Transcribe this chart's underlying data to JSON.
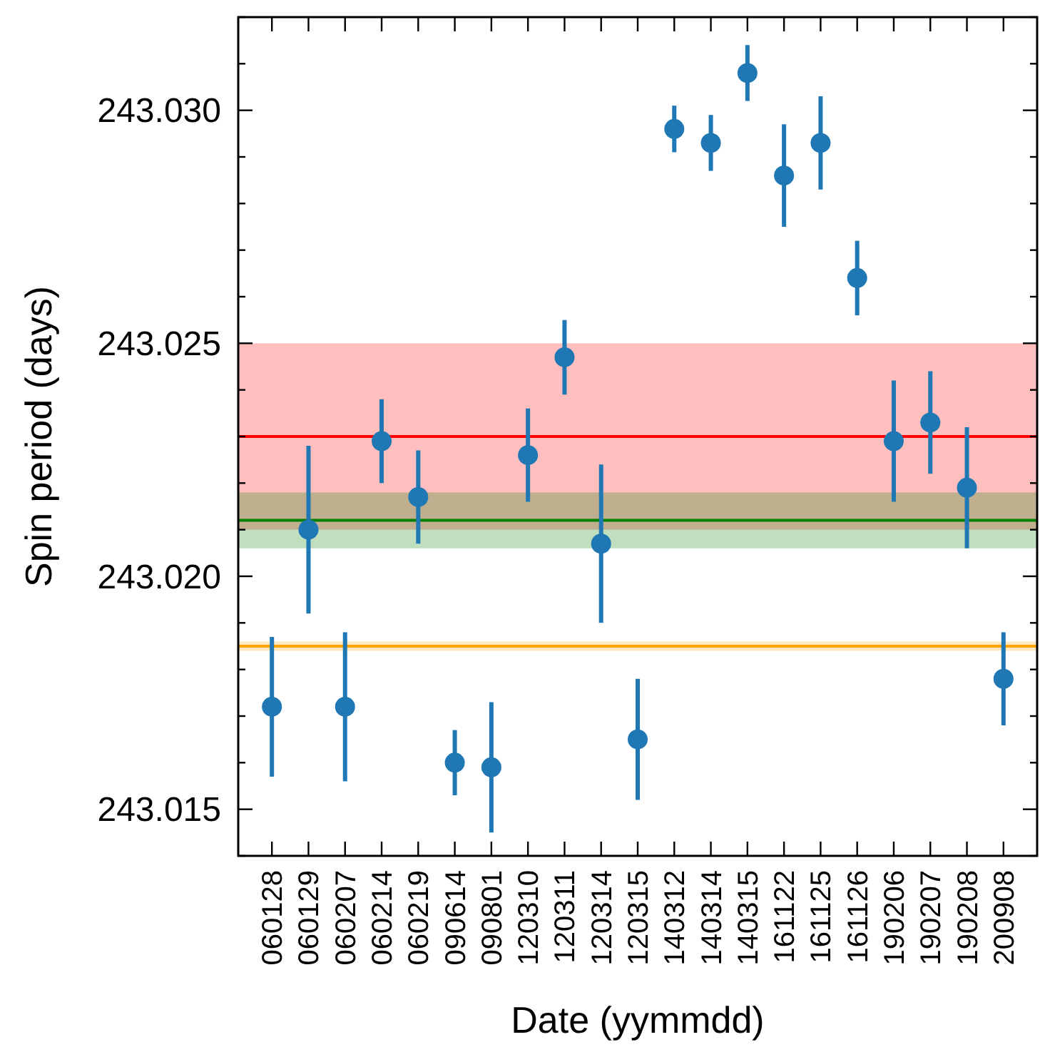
{
  "chart_data": {
    "type": "scatter",
    "xlabel": "Date (yymmdd)",
    "ylabel": "Spin period (days)",
    "categories": [
      "060128",
      "060129",
      "060207",
      "060214",
      "060219",
      "090614",
      "090801",
      "120310",
      "120311",
      "120314",
      "120315",
      "140312",
      "140314",
      "140315",
      "161122",
      "161125",
      "161126",
      "190206",
      "190207",
      "190208",
      "200908"
    ],
    "series": [
      {
        "color": "#1f77b4",
        "values": [
          243.0172,
          243.021,
          243.0172,
          243.0229,
          243.0217,
          243.016,
          243.0159,
          243.0226,
          243.0247,
          243.0207,
          243.0165,
          243.0296,
          243.0293,
          243.0308,
          243.0286,
          243.0293,
          243.0264,
          243.0229,
          243.0233,
          243.0219,
          243.0178
        ],
        "errors": [
          0.0015,
          0.0018,
          0.0016,
          0.0009,
          0.001,
          0.0007,
          0.0014,
          0.001,
          0.0008,
          0.0017,
          0.0013,
          0.0005,
          0.0006,
          0.0006,
          0.0011,
          0.001,
          0.0008,
          0.0013,
          0.0011,
          0.0013,
          0.001
        ]
      }
    ],
    "marker": "circle",
    "grid": false,
    "ylim": [
      243.014,
      243.032
    ],
    "yticks": [
      {
        "value": 243.014,
        "label": null
      },
      {
        "value": 243.015,
        "label": "243.015"
      },
      {
        "value": 243.016,
        "label": null
      },
      {
        "value": 243.017,
        "label": null
      },
      {
        "value": 243.018,
        "label": null
      },
      {
        "value": 243.019,
        "label": null
      },
      {
        "value": 243.02,
        "label": "243.020"
      },
      {
        "value": 243.021,
        "label": null
      },
      {
        "value": 243.022,
        "label": null
      },
      {
        "value": 243.023,
        "label": null
      },
      {
        "value": 243.024,
        "label": null
      },
      {
        "value": 243.025,
        "label": "243.025"
      },
      {
        "value": 243.026,
        "label": null
      },
      {
        "value": 243.027,
        "label": null
      },
      {
        "value": 243.028,
        "label": null
      },
      {
        "value": 243.029,
        "label": null
      },
      {
        "value": 243.03,
        "label": "243.030"
      },
      {
        "value": 243.031,
        "label": null
      },
      {
        "value": 243.032,
        "label": null
      }
    ],
    "bands": [
      {
        "axis": "y",
        "from": 243.021,
        "to": 243.025,
        "color": "#ff0000"
      },
      {
        "axis": "y",
        "from": 243.0206,
        "to": 243.0218,
        "color": "#008000"
      },
      {
        "axis": "y",
        "from": 243.0184,
        "to": 243.0186,
        "color": "#ffa500"
      }
    ],
    "ref_lines": [
      {
        "axis": "y",
        "value": 243.023,
        "color": "#ff0000"
      },
      {
        "axis": "y",
        "value": 243.0212,
        "color": "#008000"
      },
      {
        "axis": "y",
        "value": 243.0185,
        "color": "#ffa500"
      }
    ]
  }
}
